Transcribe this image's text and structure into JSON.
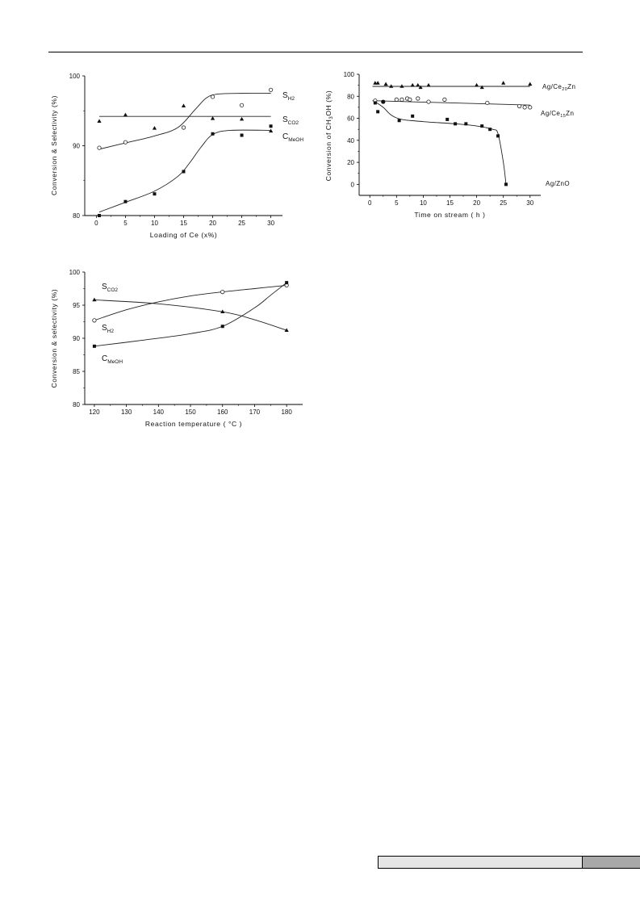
{
  "chart_data": [
    {
      "type": "line",
      "title": "",
      "xlabel": "Loading of Ce (x%)",
      "ylabel": "Conversion & Selectivity (%)",
      "xlim": [
        -2,
        32
      ],
      "ylim": [
        80,
        100
      ],
      "xticks": [
        0,
        5,
        10,
        15,
        20,
        25,
        30
      ],
      "yticks": [
        80,
        90,
        100
      ],
      "grid": false,
      "legend": "inline labels at right",
      "series": [
        {
          "name": "S",
          "sub": "H2",
          "marker": "open-circle",
          "x": [
            0.5,
            5,
            15,
            20,
            25,
            30
          ],
          "y": [
            89.7,
            90.5,
            92.6,
            97,
            95.8,
            98
          ],
          "fit": [
            [
              0.5,
              89.5
            ],
            [
              5,
              90.4
            ],
            [
              10,
              91.4
            ],
            [
              14,
              92.6
            ],
            [
              17,
              95.2
            ],
            [
              19,
              96.9
            ],
            [
              21,
              97.4
            ],
            [
              25,
              97.5
            ],
            [
              30,
              97.5
            ]
          ]
        },
        {
          "name": "S",
          "sub": "CO2",
          "marker": "filled-triangle",
          "x": [
            0.5,
            5,
            10,
            15,
            20,
            25,
            30
          ],
          "y": [
            93.5,
            94.4,
            92.5,
            95.7,
            93.9,
            93.8,
            92.1
          ],
          "fit": [
            [
              0.5,
              94.2
            ],
            [
              30,
              94.2
            ]
          ]
        },
        {
          "name": "C",
          "sub": "MeOH",
          "marker": "filled-square",
          "x": [
            0.5,
            5,
            10,
            15,
            20,
            25,
            30
          ],
          "y": [
            80,
            82,
            83.1,
            86.3,
            91.7,
            91.5,
            92.8
          ],
          "fit": [
            [
              0.5,
              80.5
            ],
            [
              5,
              81.9
            ],
            [
              10,
              83.5
            ],
            [
              14,
              85.6
            ],
            [
              16,
              87.5
            ],
            [
              18,
              89.8
            ],
            [
              20,
              91.6
            ],
            [
              23,
              92.2
            ],
            [
              30,
              92.2
            ]
          ]
        }
      ]
    },
    {
      "type": "line",
      "title": "",
      "xlabel": "Time on stream  ( h )",
      "ylabel": "Conversion of CH3OH (%)",
      "ylabel_parts": [
        "Conversion of CH",
        "3",
        "OH (%)"
      ],
      "xlim": [
        -2,
        32
      ],
      "ylim": [
        -10,
        100
      ],
      "xticks": [
        0,
        5,
        10,
        15,
        20,
        25,
        30
      ],
      "yticks": [
        0,
        20,
        40,
        60,
        80,
        100
      ],
      "grid": false,
      "legend": "inline labels at right",
      "series": [
        {
          "name": "Ag/Ce",
          "sub": "20",
          "suffix": "Zn",
          "marker": "filled-triangle",
          "x": [
            1,
            1.5,
            3,
            4,
            6,
            8,
            9,
            9.5,
            11,
            20,
            21,
            25,
            30
          ],
          "y": [
            92,
            92,
            91,
            89,
            89,
            90,
            90,
            88,
            90,
            90,
            88,
            92,
            91
          ],
          "fit": [
            [
              0.5,
              89
            ],
            [
              30,
              89
            ]
          ]
        },
        {
          "name": "Ag/Ce",
          "sub": "15",
          "suffix": "Zn",
          "marker": "open-circle",
          "x": [
            1,
            2.5,
            5,
            6,
            7,
            7.5,
            9,
            11,
            14,
            22,
            28,
            29,
            30
          ],
          "y": [
            76,
            75,
            77,
            77,
            78,
            77,
            78,
            75,
            77,
            74,
            71,
            70,
            70
          ],
          "fit": [
            [
              0.5,
              76
            ],
            [
              30,
              72
            ]
          ]
        },
        {
          "name": "Ag/ZnO",
          "sub": "",
          "suffix": "",
          "marker": "filled-square",
          "x": [
            1,
            1.5,
            2.5,
            5.5,
            8,
            14.5,
            16,
            18,
            21,
            22.5,
            24,
            25.5
          ],
          "y": [
            74,
            66,
            75,
            58,
            62,
            59,
            55,
            55,
            53,
            50,
            44,
            0
          ],
          "fit": [
            [
              1,
              75
            ],
            [
              2.5,
              70
            ],
            [
              4,
              63
            ],
            [
              6,
              59
            ],
            [
              10,
              57
            ],
            [
              16,
              55
            ],
            [
              20,
              53
            ],
            [
              23,
              50
            ],
            [
              24,
              46
            ],
            [
              25,
              20
            ],
            [
              25.5,
              0
            ]
          ]
        }
      ]
    },
    {
      "type": "line",
      "title": "",
      "xlabel": "Reaction temperature ( °C )",
      "ylabel": "Conversion & selectivity (%)",
      "xlim": [
        117,
        185
      ],
      "ylim": [
        80,
        100
      ],
      "xticks": [
        120,
        130,
        140,
        150,
        160,
        170,
        180
      ],
      "yticks": [
        80,
        85,
        90,
        95,
        100
      ],
      "grid": false,
      "legend": "inline labels at left",
      "series": [
        {
          "name": "S",
          "sub": "CO2",
          "marker": "filled-triangle",
          "x": [
            120,
            160,
            180
          ],
          "y": [
            95.8,
            94,
            91.2
          ],
          "fit": [
            [
              120,
              95.8
            ],
            [
              140,
              95.2
            ],
            [
              160,
              94
            ],
            [
              170,
              92.8
            ],
            [
              180,
              91.2
            ]
          ]
        },
        {
          "name": "S",
          "sub": "H2",
          "marker": "open-circle",
          "x": [
            120,
            160,
            180
          ],
          "y": [
            92.7,
            97,
            98
          ],
          "fit": [
            [
              120,
              92.7
            ],
            [
              130,
              94.3
            ],
            [
              140,
              95.5
            ],
            [
              150,
              96.4
            ],
            [
              160,
              97
            ],
            [
              170,
              97.5
            ],
            [
              180,
              98
            ]
          ]
        },
        {
          "name": "C",
          "sub": "MeOH",
          "marker": "filled-square",
          "x": [
            120,
            160,
            180
          ],
          "y": [
            88.8,
            91.8,
            98.4
          ],
          "fit": [
            [
              120,
              88.8
            ],
            [
              135,
              89.7
            ],
            [
              150,
              90.7
            ],
            [
              160,
              91.8
            ],
            [
              170,
              94.6
            ],
            [
              175,
              96.5
            ],
            [
              180,
              98.4
            ]
          ]
        }
      ]
    }
  ]
}
